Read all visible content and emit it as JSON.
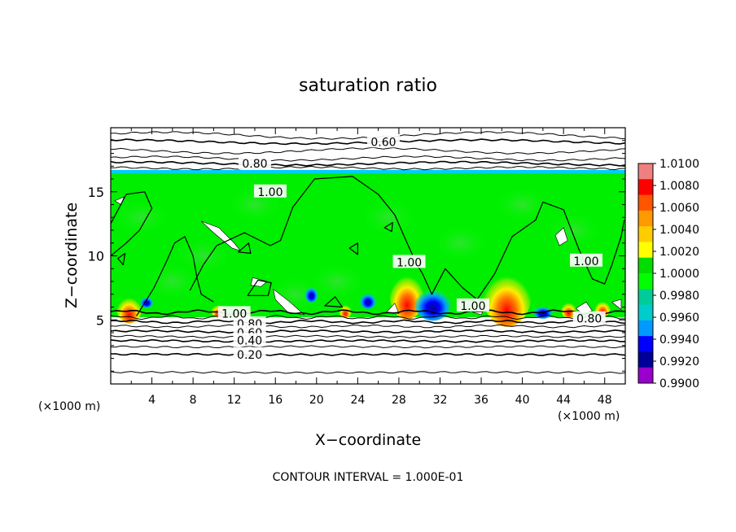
{
  "chart_data": {
    "type": "heatmap",
    "title": "saturation ratio",
    "xlabel": "X−coordinate",
    "ylabel": "Z−coordinate",
    "x_unit_left": "(×1000 m)",
    "x_unit_right": "(×1000 m)",
    "xlim": [
      0,
      50
    ],
    "ylim": [
      0,
      20
    ],
    "x_ticks": [
      4,
      8,
      12,
      16,
      20,
      24,
      28,
      32,
      36,
      40,
      44,
      48
    ],
    "y_ticks": [
      5,
      10,
      15
    ],
    "colorbar": {
      "levels": [
        "1.0100",
        "1.0080",
        "1.0060",
        "1.0040",
        "1.0020",
        "1.0000",
        "0.9980",
        "0.9960",
        "0.9940",
        "0.9920",
        "0.9900"
      ],
      "colors": [
        "#f08080",
        "#ff0000",
        "#ff5500",
        "#ff9900",
        "#ffcc00",
        "#ffff00",
        "#00dd00",
        "#00ff00",
        "#00cc99",
        "#00cccc",
        "#0099ff",
        "#0000ff",
        "#000099",
        "#9900cc"
      ]
    },
    "contour_labels": [
      {
        "text": "0.60",
        "x": 26.5,
        "y": 18.9
      },
      {
        "text": "0.80",
        "x": 14.0,
        "y": 17.2
      },
      {
        "text": "1.00",
        "x": 15.5,
        "y": 15.0
      },
      {
        "text": "1.00",
        "x": 29.0,
        "y": 9.5
      },
      {
        "text": "1.00",
        "x": 35.2,
        "y": 6.1
      },
      {
        "text": "1.00",
        "x": 46.2,
        "y": 9.6
      },
      {
        "text": "0.80",
        "x": 46.5,
        "y": 5.1
      },
      {
        "text": "0.80",
        "x": 13.5,
        "y": 4.7
      },
      {
        "text": "0.60",
        "x": 13.5,
        "y": 4.0
      },
      {
        "text": "0.40",
        "x": 13.5,
        "y": 3.4
      },
      {
        "text": "0.20",
        "x": 13.5,
        "y": 2.3
      },
      {
        "text": "1.00",
        "x": 12.0,
        "y": 5.5
      }
    ],
    "annotation": "CONTOUR INTERVAL = 1.000E-01"
  }
}
